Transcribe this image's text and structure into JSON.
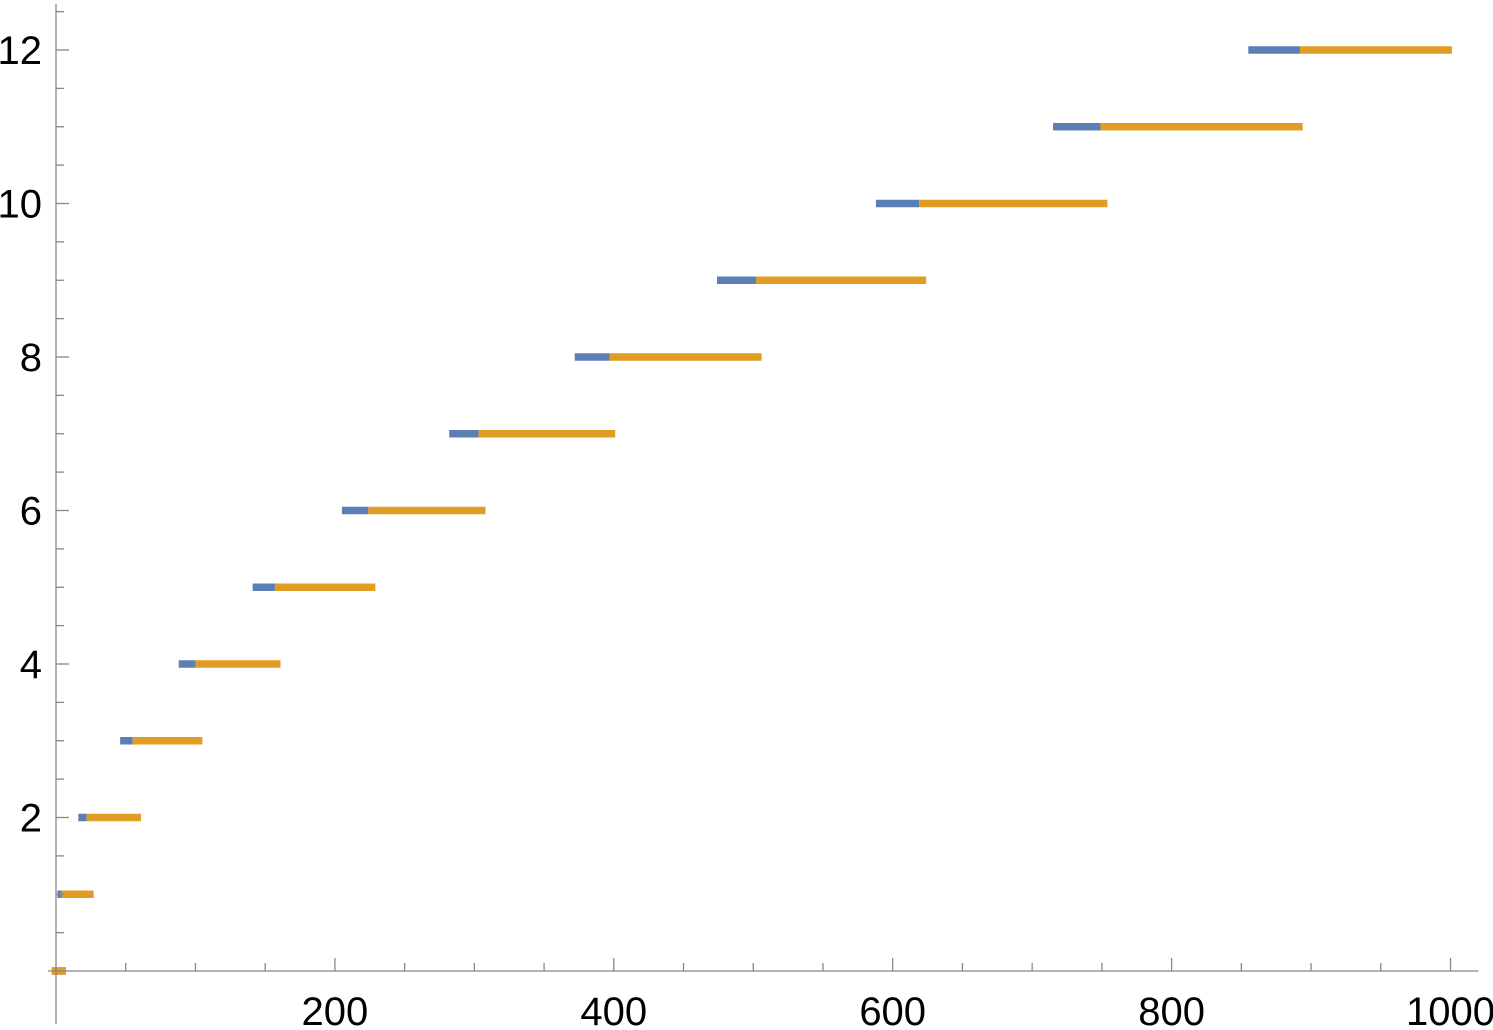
{
  "chart_data": {
    "type": "step-intervals",
    "title": "",
    "xlabel": "",
    "ylabel": "",
    "xlim": [
      0,
      1020
    ],
    "ylim": [
      -0.3,
      12.6
    ],
    "x_axis_at_y": 0,
    "y_axis_at_x": 0,
    "x_ticks": [
      200,
      400,
      600,
      800,
      1000
    ],
    "y_ticks": [
      2,
      4,
      6,
      8,
      10,
      12
    ],
    "x_minor_step": 50,
    "y_minor_step": 0.5,
    "grid": false,
    "legend": "none",
    "series": [
      {
        "color": "#5b7fb5",
        "segments": [
          {
            "y": 0,
            "x0": -3,
            "x1": 7
          },
          {
            "y": 1,
            "x0": 1,
            "x1": 4
          },
          {
            "y": 2,
            "x0": 16,
            "x1": 22
          },
          {
            "y": 3,
            "x0": 46,
            "x1": 55
          },
          {
            "y": 4,
            "x0": 88,
            "x1": 100
          },
          {
            "y": 5,
            "x0": 141,
            "x1": 157
          },
          {
            "y": 6,
            "x0": 205,
            "x1": 224
          },
          {
            "y": 7,
            "x0": 282,
            "x1": 303
          },
          {
            "y": 8,
            "x0": 372,
            "x1": 397
          },
          {
            "y": 9,
            "x0": 474,
            "x1": 502
          },
          {
            "y": 10,
            "x0": 588,
            "x1": 619
          },
          {
            "y": 11,
            "x0": 715,
            "x1": 749
          },
          {
            "y": 12,
            "x0": 855,
            "x1": 892
          }
        ]
      },
      {
        "color": "#e19c24",
        "segments": [
          {
            "y": 0,
            "x0": -3,
            "x1": 7
          },
          {
            "y": 1,
            "x0": 4,
            "x1": 27
          },
          {
            "y": 2,
            "x0": 22,
            "x1": 61
          },
          {
            "y": 3,
            "x0": 55,
            "x1": 105
          },
          {
            "y": 4,
            "x0": 100,
            "x1": 161
          },
          {
            "y": 5,
            "x0": 157,
            "x1": 229
          },
          {
            "y": 6,
            "x0": 224,
            "x1": 308
          },
          {
            "y": 7,
            "x0": 303,
            "x1": 401
          },
          {
            "y": 8,
            "x0": 397,
            "x1": 506
          },
          {
            "y": 9,
            "x0": 502,
            "x1": 624
          },
          {
            "y": 10,
            "x0": 619,
            "x1": 754
          },
          {
            "y": 11,
            "x0": 749,
            "x1": 894
          },
          {
            "y": 12,
            "x0": 892,
            "x1": 1001
          }
        ]
      }
    ]
  }
}
